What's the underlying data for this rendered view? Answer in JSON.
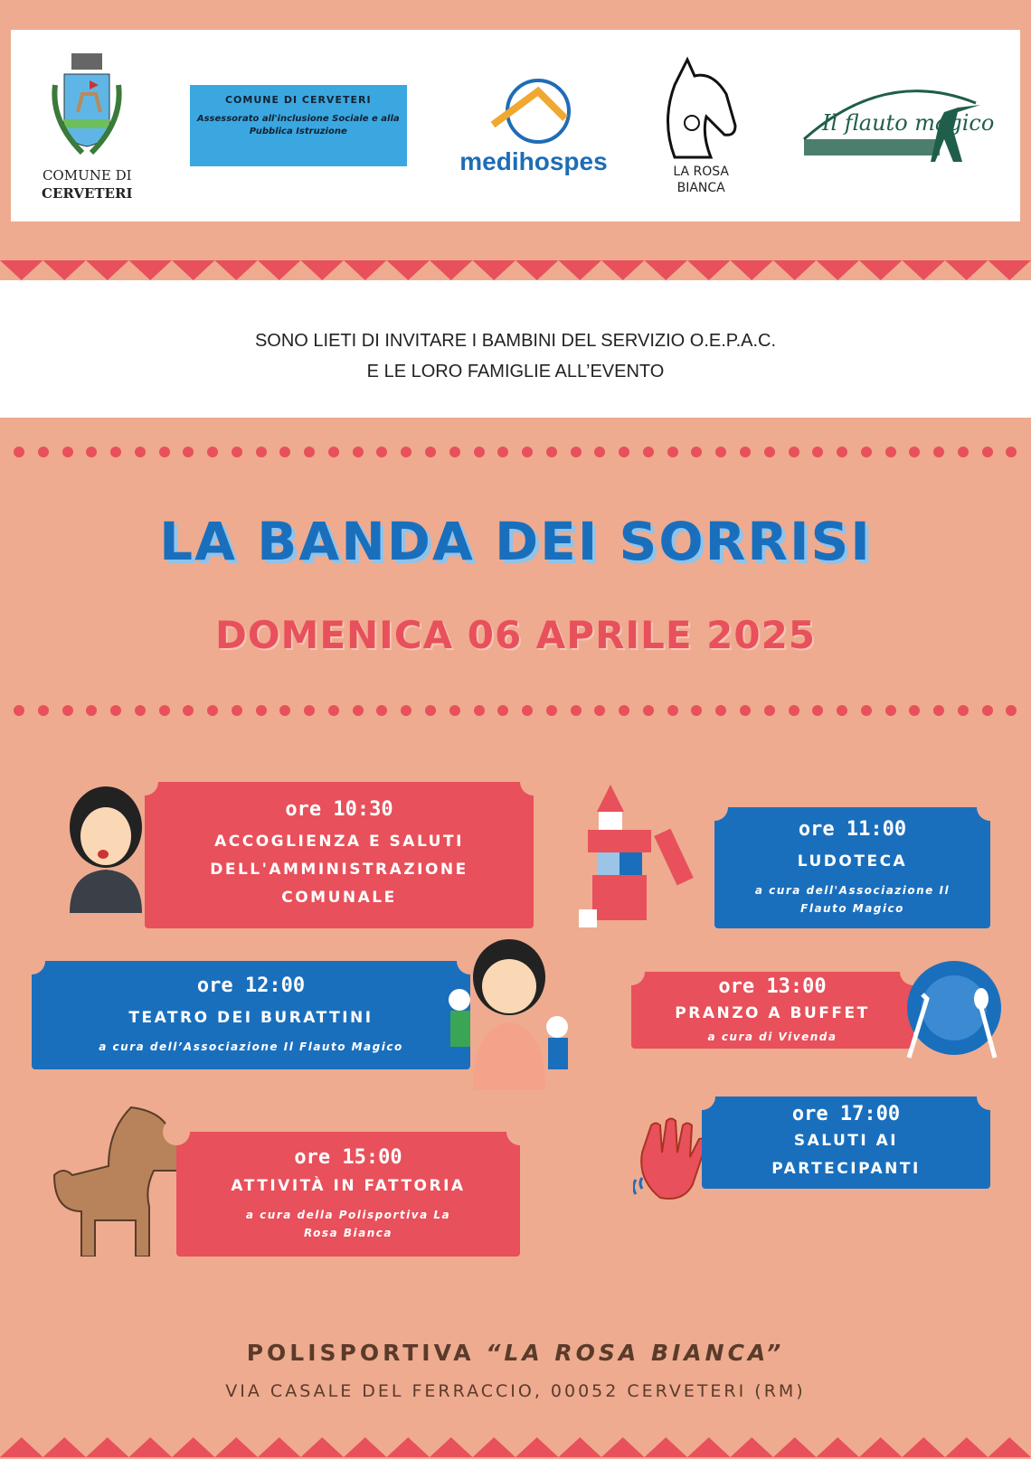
{
  "logos": {
    "comune": "COMUNE DI\nCERVETERI",
    "comune_line1": "COMUNE DI",
    "comune_line2": "CERVETERI",
    "assessorato_title": "COMUNE DI CERVETERI",
    "assessorato_sub": "Assessorato all'inclusione Sociale e alla Pubblica Istruzione",
    "medihospes": "medihospes",
    "rosa_line1": "LA ROSA",
    "rosa_line2": "BIANCA",
    "flauto": "Il flauto magico"
  },
  "invite": {
    "line1": "SONO LIETI DI INVITARE I BAMBINI DEL SERVIZIO O.E.P.A.C.",
    "line2": "E LE LORO FAMIGLIE ALL’EVENTO"
  },
  "event": {
    "title": "LA BANDA DEI SORRISI",
    "date": "DOMENICA 06 APRILE 2025"
  },
  "program": [
    {
      "time": "ore 10:30",
      "activity": "ACCOGLIENZA E SALUTI DELL'AMMINISTRAZIONE COMUNALE",
      "note": ""
    },
    {
      "time": "ore 11:00",
      "activity": "LUDOTECA",
      "note": "a cura dell'Associazione Il Flauto Magico"
    },
    {
      "time": "ore 12:00",
      "activity": "TEATRO DEI BURATTINI",
      "note": "a cura dell’Associazione Il Flauto Magico"
    },
    {
      "time": "ore 13:00",
      "activity": "PRANZO A BUFFET",
      "note": "a cura di Vivenda"
    },
    {
      "time": "ore 15:00",
      "activity": "ATTIVITÀ IN FATTORIA",
      "note": "a cura della Polisportiva La Rosa Bianca"
    },
    {
      "time": "ore 17:00",
      "activity": "SALUTI AI PARTECIPANTI",
      "note": ""
    }
  ],
  "venue": {
    "prefix": "POLISPORTIVA ",
    "name": "“LA ROSA BIANCA”",
    "address": "VIA CASALE DEL FERRACCIO, 00052 CERVETERI (RM)"
  },
  "colors": {
    "background": "#eeab90",
    "red": "#e8505b",
    "blue": "#1a6fbd"
  }
}
